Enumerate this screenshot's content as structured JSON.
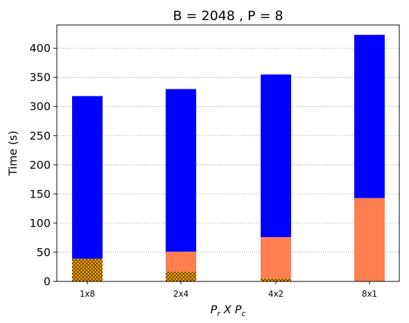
{
  "chart_data": {
    "type": "bar",
    "title": "B = 2048 ,  P = 8",
    "xlabel_main": "P",
    "xlabel_sub1": "r",
    "xlabel_mid": " X P",
    "xlabel_sub2": "c",
    "ylabel": "Time (s)",
    "ylim": [
      0,
      440
    ],
    "yticks": [
      0,
      50,
      100,
      150,
      200,
      250,
      300,
      350,
      400
    ],
    "grid": "horizontal dotted",
    "categories": [
      "1x8",
      "2x4",
      "4x2",
      "8x1"
    ],
    "stack": [
      {
        "color": "#ffa500",
        "hatch": true,
        "values": [
          39,
          17,
          5,
          1
        ]
      },
      {
        "color": "#ff7f50",
        "hatch": false,
        "values": [
          0,
          34,
          71,
          142
        ]
      },
      {
        "color": "#0000ff",
        "hatch": false,
        "values": [
          279,
          279,
          279,
          280
        ]
      }
    ]
  }
}
